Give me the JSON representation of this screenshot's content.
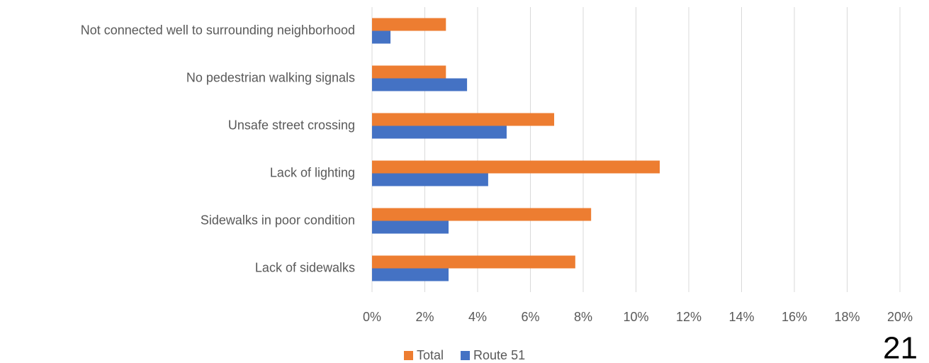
{
  "chart_data": {
    "type": "bar",
    "orientation": "horizontal",
    "categories": [
      "Not connected well to surrounding neighborhood",
      "No pedestrian walking signals",
      "Unsafe street crossing",
      "Lack of lighting",
      "Sidewalks in poor condition",
      "Lack of sidewalks"
    ],
    "series": [
      {
        "name": "Total",
        "color": "#ed7d31",
        "values": [
          2.8,
          2.8,
          6.9,
          10.9,
          8.3,
          7.7
        ]
      },
      {
        "name": "Route 51",
        "color": "#4472c4",
        "values": [
          0.7,
          3.6,
          5.1,
          4.4,
          2.9,
          2.9
        ]
      }
    ],
    "xlim": [
      0,
      20
    ],
    "xticks": [
      {
        "value": 0,
        "label": "0%"
      },
      {
        "value": 2,
        "label": "2%"
      },
      {
        "value": 4,
        "label": "4%"
      },
      {
        "value": 6,
        "label": "6%"
      },
      {
        "value": 8,
        "label": "8%"
      },
      {
        "value": 10,
        "label": "10%"
      },
      {
        "value": 12,
        "label": "12%"
      },
      {
        "value": 14,
        "label": "14%"
      },
      {
        "value": 16,
        "label": "16%"
      },
      {
        "value": 18,
        "label": "18%"
      },
      {
        "value": 20,
        "label": "20%"
      }
    ],
    "grid": true,
    "legend": "bottom"
  },
  "page_number": "21"
}
